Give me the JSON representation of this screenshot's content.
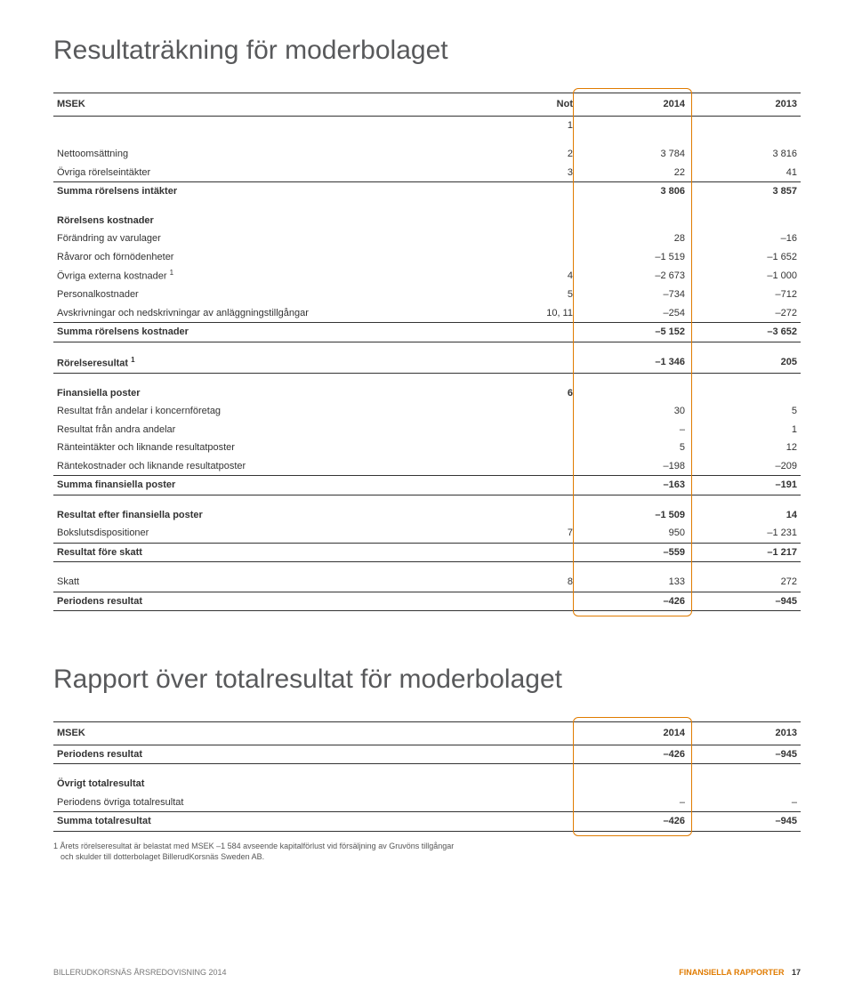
{
  "title1": "Resultaträkning för moderbolaget",
  "title2": "Rapport över totalresultat för moderbolaget",
  "table1": {
    "head": {
      "c0": "MSEK",
      "c1": "Not",
      "c2": "2014",
      "c3": "2013"
    },
    "not1": "1",
    "rows": [
      {
        "label": "Nettoomsättning",
        "not": "2",
        "y14": "3 784",
        "y13": "3 816",
        "cls": "section-gap"
      },
      {
        "label": "Övriga rörelseintäkter",
        "not": "3",
        "y14": "22",
        "y13": "41"
      },
      {
        "label": "Summa rörelsens intäkter",
        "not": "",
        "y14": "3 806",
        "y13": "3 857",
        "cls": "bold rule-above"
      },
      {
        "label": "Rörelsens kostnader",
        "not": "",
        "y14": "",
        "y13": "",
        "cls": "bold section-gap"
      },
      {
        "label": "Förändring av varulager",
        "not": "",
        "y14": "28",
        "y13": "–16"
      },
      {
        "label": "Råvaror och förnödenheter",
        "not": "",
        "y14": "–1 519",
        "y13": "–1 652"
      },
      {
        "label": "Övriga externa kostnader ¹",
        "not": "4",
        "y14": "–2 673",
        "y13": "–1 000"
      },
      {
        "label": "Personalkostnader",
        "not": "5",
        "y14": "–734",
        "y13": "–712"
      },
      {
        "label": "Avskrivningar och nedskrivningar av anläggningstillgångar",
        "not": "10, 11",
        "y14": "–254",
        "y13": "–272"
      },
      {
        "label": "Summa rörelsens kostnader",
        "not": "",
        "y14": "–5 152",
        "y13": "–3 652",
        "cls": "bold rule-above"
      },
      {
        "label": "Rörelseresultat ¹",
        "not": "",
        "y14": "–1 346",
        "y13": "205",
        "cls": "bold section-gap rule-above rule-below"
      },
      {
        "label": "Finansiella poster",
        "not": "6",
        "y14": "",
        "y13": "",
        "cls": "bold section-gap"
      },
      {
        "label": "Resultat från andelar i koncernföretag",
        "not": "",
        "y14": "30",
        "y13": "5"
      },
      {
        "label": "Resultat från andra andelar",
        "not": "",
        "y14": "–",
        "y13": "1"
      },
      {
        "label": "Ränteintäkter och liknande resultatposter",
        "not": "",
        "y14": "5",
        "y13": "12"
      },
      {
        "label": "Räntekostnader och liknande resultatposter",
        "not": "",
        "y14": "–198",
        "y13": "–209"
      },
      {
        "label": "Summa finansiella poster",
        "not": "",
        "y14": "–163",
        "y13": "–191",
        "cls": "bold rule-above"
      },
      {
        "label": "Resultat efter finansiella poster",
        "not": "",
        "y14": "–1 509",
        "y13": "14",
        "cls": "bold section-gap rule-above"
      },
      {
        "label": "Bokslutsdispositioner",
        "not": "7",
        "y14": "950",
        "y13": "–1 231"
      },
      {
        "label": "Resultat före skatt",
        "not": "",
        "y14": "–559",
        "y13": "–1 217",
        "cls": "bold rule-above"
      },
      {
        "label": "Skatt",
        "not": "8",
        "y14": "133",
        "y13": "272",
        "cls": "section-gap rule-above rule-below"
      },
      {
        "label": "Periodens resultat",
        "not": "",
        "y14": "–426",
        "y13": "–945",
        "cls": "bold rule-below"
      }
    ]
  },
  "table2": {
    "head": {
      "c0": "MSEK",
      "c2": "2014",
      "c3": "2013"
    },
    "rows": [
      {
        "label": "Periodens resultat",
        "y14": "–426",
        "y13": "–945",
        "cls": "bold rule-below"
      },
      {
        "label": "Övrigt totalresultat",
        "y14": "",
        "y13": "",
        "cls": "bold section-gap"
      },
      {
        "label": "Periodens övriga totalresultat",
        "y14": "–",
        "y13": "–"
      },
      {
        "label": "Summa totalresultat",
        "y14": "–426",
        "y13": "–945",
        "cls": "bold rule-above rule-below"
      }
    ]
  },
  "footnote": {
    "line1": "1 Årets rörelseresultat är belastat med MSEK –1 584 avseende kapitalförlust vid försäljning av Gruvöns tillgångar",
    "line2": "och skulder till dotterbolaget BillerudKorsnäs Sweden AB."
  },
  "footer": {
    "left": "BILLERUDKORSNÄS ÅRSREDOVISNING 2014",
    "right": "FINANSIELLA RAPPORTER",
    "page": "17"
  },
  "styling": {
    "highlight_color": "#e07b00",
    "text_color": "#333333",
    "heading_color": "#58595b",
    "background": "#ffffff",
    "base_font_size": 11,
    "heading_font_size": 30,
    "footnote_font_size": 9,
    "table_type": "table"
  }
}
